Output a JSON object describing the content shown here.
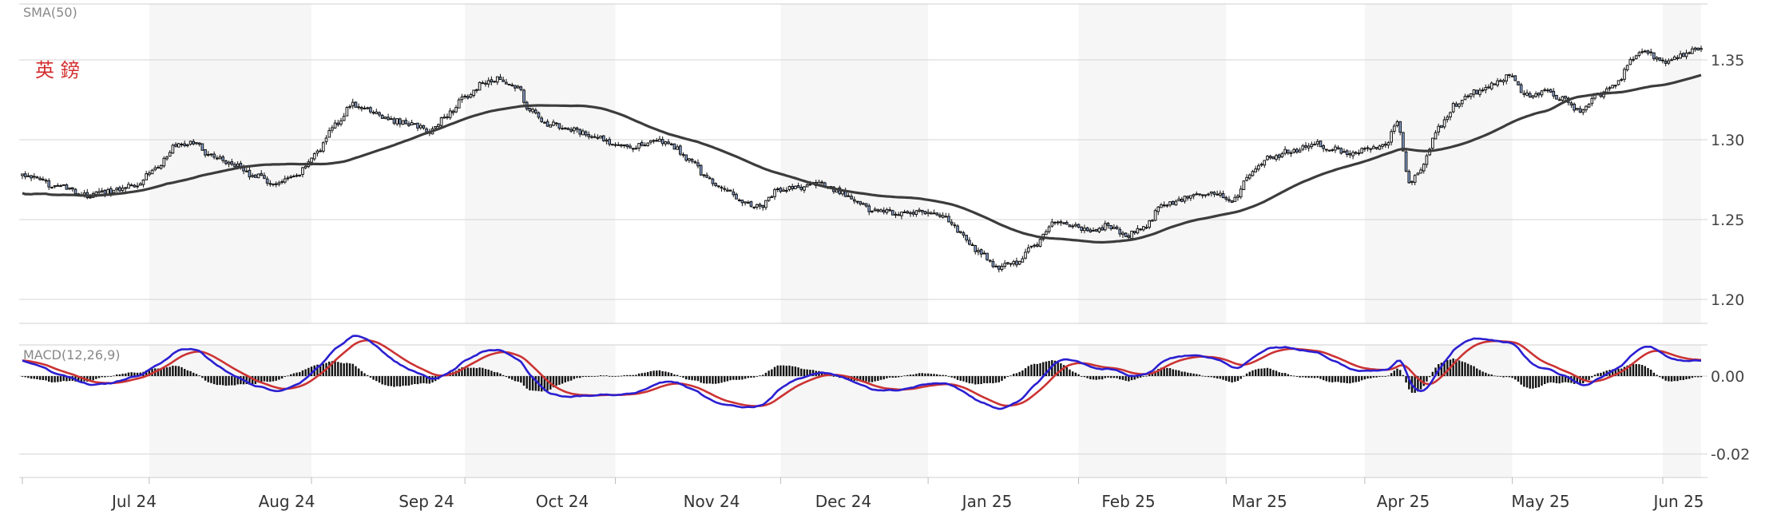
{
  "chart_data": {
    "type": "candlestick",
    "pair_label": "英 鎊",
    "overlay_label": "SMA(50)",
    "indicator_label": "MACD(12,26,9)",
    "price_axis": {
      "ticks": [
        "1.35",
        "1.30",
        "1.25",
        "1.20"
      ],
      "range": [
        1.185,
        1.385
      ]
    },
    "macd_axis": {
      "ticks": [
        "0.00",
        "-0.02"
      ],
      "range": [
        -0.026,
        0.008
      ]
    },
    "x_axis": {
      "ticks": [
        "Jul 24",
        "Aug 24",
        "Sep 24",
        "Oct 24",
        "Nov 24",
        "Dec 24",
        "Jan 25",
        "Feb 25",
        "Mar 25",
        "Apr 25",
        "May 25",
        "Jun 25"
      ]
    },
    "grid": true,
    "colors": {
      "sma": "#3c3c3c",
      "macd": "#2b1fd1",
      "signal": "#cc3333",
      "histogram": "#111111",
      "up_candle": "#ffffff",
      "down_candle": "#8aa4d4",
      "pair_label": "#d32f2f"
    },
    "price_anchors": [
      [
        0,
        1.278
      ],
      [
        10,
        1.272
      ],
      [
        22,
        1.265
      ],
      [
        30,
        1.268
      ],
      [
        38,
        1.272
      ],
      [
        45,
        1.282
      ],
      [
        52,
        1.296
      ],
      [
        58,
        1.298
      ],
      [
        64,
        1.29
      ],
      [
        70,
        1.286
      ],
      [
        78,
        1.278
      ],
      [
        86,
        1.272
      ],
      [
        92,
        1.276
      ],
      [
        100,
        1.292
      ],
      [
        106,
        1.31
      ],
      [
        112,
        1.322
      ],
      [
        118,
        1.318
      ],
      [
        125,
        1.312
      ],
      [
        132,
        1.31
      ],
      [
        138,
        1.305
      ],
      [
        144,
        1.316
      ],
      [
        150,
        1.326
      ],
      [
        156,
        1.335
      ],
      [
        162,
        1.338
      ],
      [
        168,
        1.332
      ],
      [
        172,
        1.318
      ],
      [
        178,
        1.31
      ],
      [
        186,
        1.306
      ],
      [
        194,
        1.302
      ],
      [
        200,
        1.298
      ],
      [
        208,
        1.296
      ],
      [
        214,
        1.3
      ],
      [
        220,
        1.296
      ],
      [
        226,
        1.288
      ],
      [
        232,
        1.276
      ],
      [
        238,
        1.268
      ],
      [
        244,
        1.262
      ],
      [
        250,
        1.258
      ],
      [
        256,
        1.268
      ],
      [
        264,
        1.27
      ],
      [
        270,
        1.272
      ],
      [
        276,
        1.268
      ],
      [
        282,
        1.262
      ],
      [
        288,
        1.256
      ],
      [
        296,
        1.254
      ],
      [
        304,
        1.255
      ],
      [
        312,
        1.252
      ],
      [
        318,
        1.242
      ],
      [
        324,
        1.23
      ],
      [
        330,
        1.22
      ],
      [
        336,
        1.222
      ],
      [
        342,
        1.232
      ],
      [
        350,
        1.248
      ],
      [
        356,
        1.246
      ],
      [
        362,
        1.243
      ],
      [
        368,
        1.246
      ],
      [
        374,
        1.24
      ],
      [
        380,
        1.244
      ],
      [
        386,
        1.258
      ],
      [
        392,
        1.262
      ],
      [
        398,
        1.266
      ],
      [
        404,
        1.266
      ],
      [
        410,
        1.262
      ],
      [
        416,
        1.278
      ],
      [
        422,
        1.288
      ],
      [
        430,
        1.293
      ],
      [
        438,
        1.298
      ],
      [
        444,
        1.294
      ],
      [
        450,
        1.292
      ],
      [
        456,
        1.294
      ],
      [
        462,
        1.298
      ],
      [
        466,
        1.31
      ],
      [
        470,
        1.274
      ],
      [
        474,
        1.282
      ],
      [
        480,
        1.308
      ],
      [
        486,
        1.322
      ],
      [
        492,
        1.33
      ],
      [
        498,
        1.334
      ],
      [
        504,
        1.34
      ],
      [
        510,
        1.328
      ],
      [
        516,
        1.33
      ],
      [
        522,
        1.326
      ],
      [
        528,
        1.318
      ],
      [
        534,
        1.328
      ],
      [
        540,
        1.335
      ],
      [
        546,
        1.352
      ],
      [
        550,
        1.357
      ],
      [
        554,
        1.35
      ],
      [
        558,
        1.348
      ],
      [
        562,
        1.353
      ],
      [
        566,
        1.356
      ]
    ]
  }
}
